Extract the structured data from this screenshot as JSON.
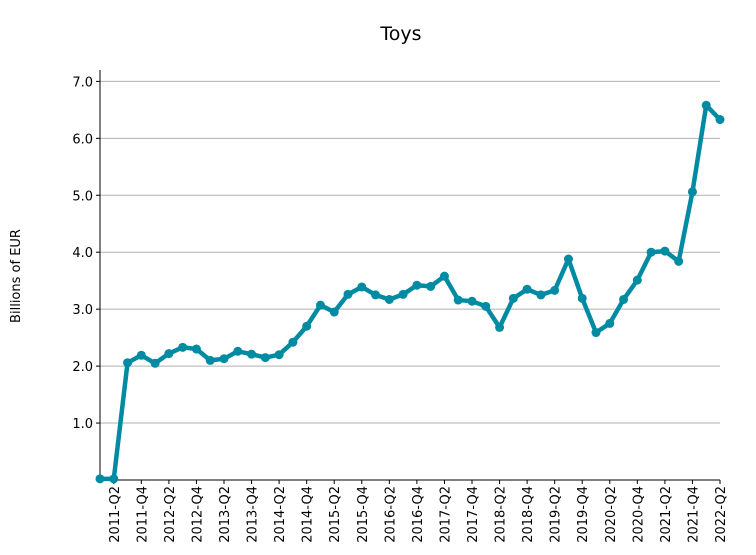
{
  "chart_data": {
    "type": "line",
    "title": "Toys",
    "y_label": "Billions of EUR",
    "categories": [
      null,
      "2011-Q2",
      null,
      "2011-Q4",
      null,
      "2012-Q2",
      null,
      "2012-Q4",
      null,
      "2013-Q2",
      null,
      "2013-Q4",
      null,
      "2014-Q2",
      null,
      "2014-Q4",
      null,
      "2015-Q2",
      null,
      "2015-Q4",
      null,
      "2016-Q2",
      null,
      "2016-Q4",
      null,
      "2017-Q2",
      null,
      "2017-Q4",
      null,
      "2018-Q2",
      null,
      "2018-Q4",
      null,
      "2019-Q2",
      null,
      "2019-Q4",
      null,
      "2020-Q2",
      null,
      "2020-Q4",
      null,
      "2021-Q2",
      null,
      "2021-Q4",
      null,
      "2022-Q2"
    ],
    "series": [
      {
        "name": "Toys",
        "color": "#008ba3",
        "values": [
          0.02,
          0.02,
          2.06,
          2.19,
          2.05,
          2.22,
          2.33,
          2.3,
          2.1,
          2.13,
          2.26,
          2.21,
          2.15,
          2.2,
          2.42,
          2.7,
          3.07,
          2.95,
          3.26,
          3.39,
          3.25,
          3.17,
          3.26,
          3.42,
          3.4,
          3.58,
          3.16,
          3.14,
          3.05,
          2.68,
          3.19,
          3.35,
          3.25,
          3.33,
          3.88,
          3.19,
          2.59,
          2.75,
          3.17,
          3.51,
          4.0,
          4.02,
          3.84,
          5.06,
          6.58,
          6.33
        ]
      }
    ],
    "ylim": [
      0,
      7.2
    ],
    "yticks": [
      {
        "value": 1,
        "label": "1.0"
      },
      {
        "value": 2,
        "label": "2.0"
      },
      {
        "value": 3,
        "label": "3.0"
      },
      {
        "value": 4,
        "label": "4.0"
      },
      {
        "value": 5,
        "label": "5.0"
      },
      {
        "value": 6,
        "label": "6.0"
      },
      {
        "value": 7,
        "label": "7.0"
      }
    ],
    "grid": true
  }
}
